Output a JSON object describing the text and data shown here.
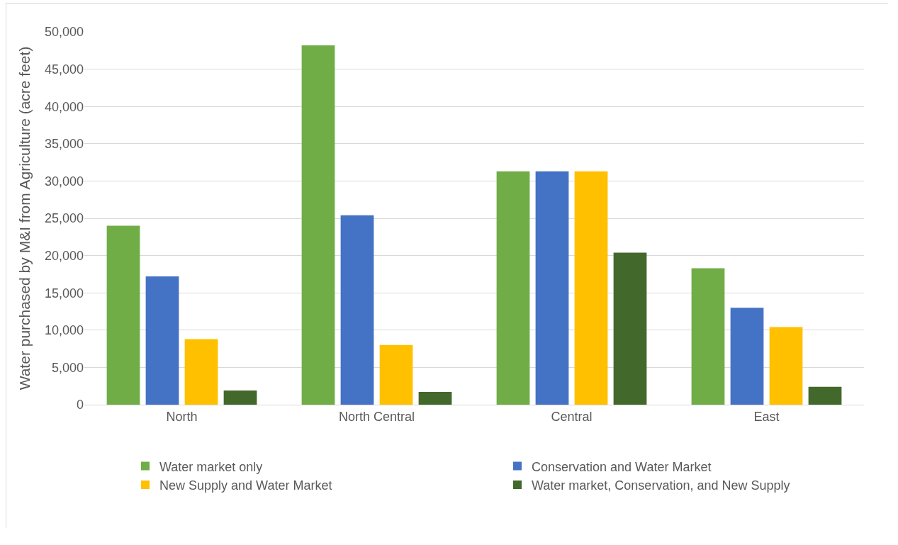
{
  "chart_data": {
    "type": "bar",
    "ylabel": "Water purchased by M&I from Agriculture (acre feet)",
    "categories": [
      "North",
      "North Central",
      "Central",
      "East"
    ],
    "series": [
      {
        "name": "Water market only",
        "color": "#70ad47",
        "values": [
          24000,
          48200,
          31300,
          18300
        ]
      },
      {
        "name": "Conservation and Water Market",
        "color": "#4472c4",
        "values": [
          17200,
          25400,
          31300,
          13000
        ]
      },
      {
        "name": "New Supply and Water Market",
        "color": "#ffc000",
        "values": [
          8800,
          8000,
          31300,
          10400
        ]
      },
      {
        "name": "Water market, Conservation, and New Supply",
        "color": "#43682b",
        "values": [
          1900,
          1700,
          20400,
          2400
        ]
      }
    ],
    "ylim": [
      0,
      50000
    ],
    "yticks": [
      {
        "value": 0,
        "label": "0"
      },
      {
        "value": 5000,
        "label": "5,000"
      },
      {
        "value": 10000,
        "label": "10,000"
      },
      {
        "value": 15000,
        "label": "15,000"
      },
      {
        "value": 20000,
        "label": "20,000"
      },
      {
        "value": 25000,
        "label": "25,000"
      },
      {
        "value": 30000,
        "label": "30,000"
      },
      {
        "value": 35000,
        "label": "35,000"
      },
      {
        "value": 40000,
        "label": "40,000"
      },
      {
        "value": 45000,
        "label": "45,000"
      },
      {
        "value": 50000,
        "label": "50,000"
      }
    ],
    "grid": "y",
    "legend": "bottom"
  }
}
